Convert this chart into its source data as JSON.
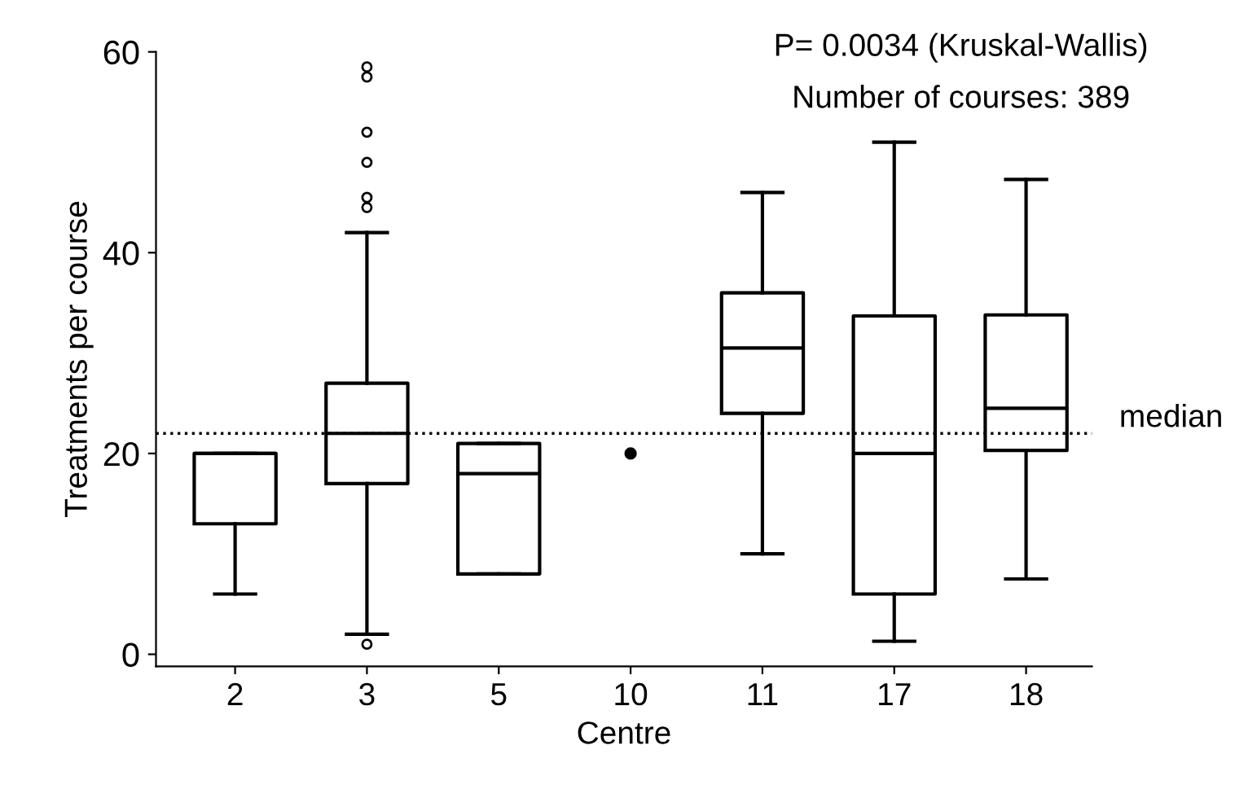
{
  "chart_data": {
    "type": "box",
    "xlabel": "Centre",
    "ylabel": "Treatments per course",
    "categories": [
      "2",
      "3",
      "5",
      "10",
      "11",
      "17",
      "18"
    ],
    "boxes": [
      {
        "low": 6,
        "q1": 13,
        "median": 20,
        "q3": 20,
        "high": 20
      },
      {
        "low": 2,
        "q1": 17,
        "median": 22,
        "q3": 27,
        "high": 42,
        "outliers": [
          1,
          44.5,
          45.5,
          49,
          52,
          57.5,
          58.5
        ]
      },
      {
        "low": 8,
        "q1": 8,
        "median": 18,
        "q3": 21,
        "high": 21
      },
      null,
      {
        "low": 10,
        "q1": 24,
        "median": 30.5,
        "q3": 36,
        "high": 46
      },
      {
        "low": 1.3,
        "q1": 6,
        "median": 20,
        "q3": 33.7,
        "high": 51
      },
      {
        "low": 7.5,
        "q1": 20.3,
        "median": 24.5,
        "q3": 33.8,
        "high": 47.3
      }
    ],
    "series": [
      {
        "type": "scatter",
        "x": [
          "10"
        ],
        "values": [
          20
        ],
        "color": "#000000"
      }
    ],
    "ylim": [
      -1.2,
      60
    ],
    "yticks": [
      0,
      20,
      40,
      60
    ],
    "ref_lines": [
      {
        "axis": "y",
        "value": 22,
        "label": "median",
        "line_style": "dotted",
        "color": "#000000"
      }
    ],
    "annotations": [
      "P= 0.0034 (Kruskal-Wallis)",
      "Number of courses: 389"
    ],
    "grid": false,
    "legend": false
  }
}
